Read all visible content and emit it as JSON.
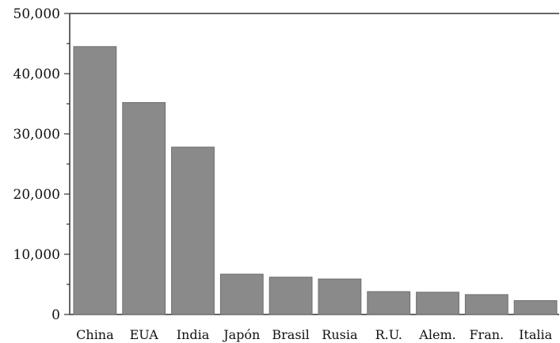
{
  "chart_data": {
    "type": "bar",
    "categories": [
      "China",
      "EUA",
      "India",
      "Japón",
      "Brasil",
      "Rusia",
      "R.U.",
      "Alem.",
      "Fran.",
      "Italia"
    ],
    "values": [
      44500,
      35200,
      27800,
      6700,
      6200,
      5900,
      3800,
      3700,
      3300,
      2300
    ],
    "yticks": [
      "0",
      "10,000",
      "20,000",
      "30,000",
      "40,000",
      "50,000"
    ],
    "ylim": [
      0,
      50000
    ],
    "title": "",
    "xlabel": "",
    "ylabel": "",
    "grid": false,
    "colors": {
      "bar": "#8a8a8a",
      "bar_edge": "#6e6e6e",
      "axis": "#333333"
    }
  }
}
